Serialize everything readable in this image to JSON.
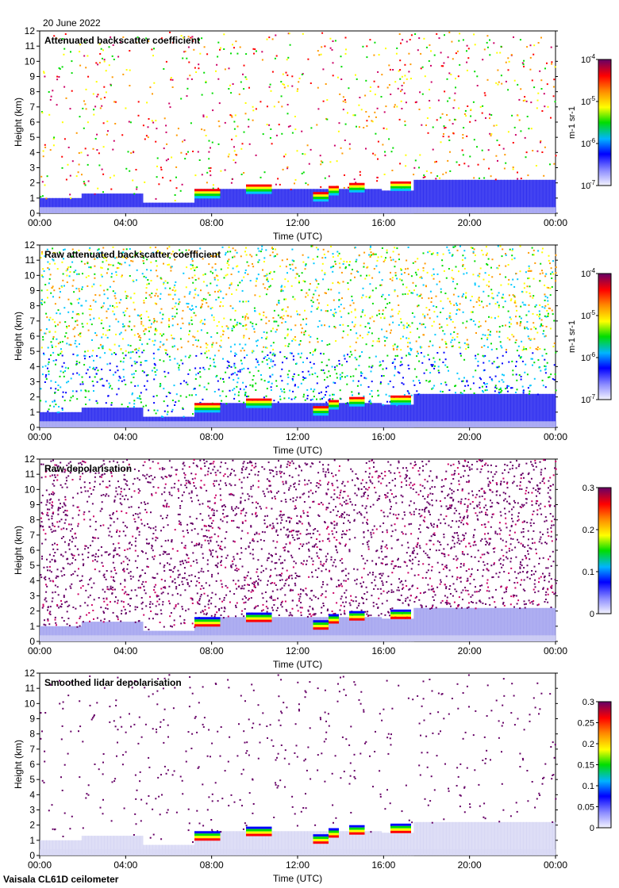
{
  "date_label": "20 June 2022",
  "footer": "Vaisala CL61D ceilometer",
  "colors": {
    "low": "#d8d8f5",
    "blue": "#0000ff",
    "cyan": "#00c8ff",
    "green": "#00dd00",
    "yellow": "#ffff00",
    "orange": "#ff9900",
    "red": "#ff0000",
    "magenta": "#cc0066",
    "purple": "#660066"
  },
  "chart_data": [
    {
      "type": "heatmap",
      "title": "Attenuated backscatter coefficient",
      "xlabel": "Time (UTC)",
      "ylabel": "Height (km)",
      "x_ticks": [
        "00:00",
        "04:00",
        "08:00",
        "12:00",
        "16:00",
        "20:00",
        "00:00"
      ],
      "y_ticks": [
        "0",
        "1",
        "2",
        "3",
        "4",
        "5",
        "6",
        "7",
        "8",
        "9",
        "10",
        "11",
        "12"
      ],
      "ylim": [
        0,
        12
      ],
      "colorbar": {
        "scale": "log",
        "unit": "m-1 sr-1",
        "tick_labels": [
          {
            "base": "10",
            "exp": "-4"
          },
          {
            "base": "10",
            "exp": "-5"
          },
          {
            "base": "10",
            "exp": "-6"
          },
          {
            "base": "10",
            "exp": "-7"
          }
        ]
      }
    },
    {
      "type": "heatmap",
      "title": "Raw attenuated backscatter coefficient",
      "xlabel": "Time (UTC)",
      "ylabel": "Height (km)",
      "x_ticks": [
        "00:00",
        "04:00",
        "08:00",
        "12:00",
        "16:00",
        "20:00",
        "00:00"
      ],
      "y_ticks": [
        "0",
        "1",
        "2",
        "3",
        "4",
        "5",
        "6",
        "7",
        "8",
        "9",
        "10",
        "11",
        "12"
      ],
      "ylim": [
        0,
        12
      ],
      "colorbar": {
        "scale": "log",
        "unit": "m-1 sr-1",
        "tick_labels": [
          {
            "base": "10",
            "exp": "-4"
          },
          {
            "base": "10",
            "exp": "-5"
          },
          {
            "base": "10",
            "exp": "-6"
          },
          {
            "base": "10",
            "exp": "-7"
          }
        ]
      }
    },
    {
      "type": "heatmap",
      "title": "Raw depolarisation",
      "xlabel": "Time (UTC)",
      "ylabel": "Height (km)",
      "x_ticks": [
        "00:00",
        "04:00",
        "08:00",
        "12:00",
        "16:00",
        "20:00",
        "00:00"
      ],
      "y_ticks": [
        "0",
        "1",
        "2",
        "3",
        "4",
        "5",
        "6",
        "7",
        "8",
        "9",
        "10",
        "11",
        "12"
      ],
      "ylim": [
        0,
        12
      ],
      "colorbar": {
        "scale": "linear",
        "range": [
          0,
          0.3
        ],
        "tick_labels": [
          "0.3",
          "0.2",
          "0.1",
          "0"
        ]
      }
    },
    {
      "type": "heatmap",
      "title": "Smoothed lidar depolarisation",
      "xlabel": "Time (UTC)",
      "ylabel": "Height (km)",
      "x_ticks": [
        "00:00",
        "04:00",
        "08:00",
        "12:00",
        "16:00",
        "20:00",
        "00:00"
      ],
      "y_ticks": [
        "0",
        "1",
        "2",
        "3",
        "4",
        "5",
        "6",
        "7",
        "8",
        "9",
        "10",
        "11",
        "12"
      ],
      "ylim": [
        0,
        12
      ],
      "colorbar": {
        "scale": "linear",
        "range": [
          0,
          0.3
        ],
        "tick_labels": [
          "0.3",
          "0.25",
          "0.2",
          "0.15",
          "0.1",
          "0.05",
          "0"
        ]
      }
    }
  ]
}
